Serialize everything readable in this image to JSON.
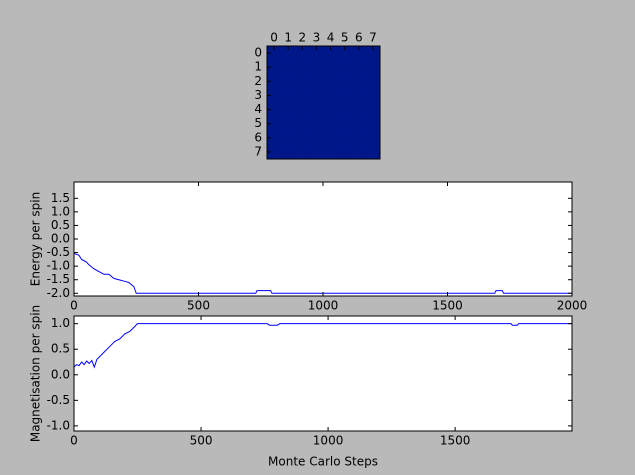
{
  "chart_data": [
    {
      "type": "heatmap",
      "xticks": [
        0,
        1,
        2,
        3,
        4,
        5,
        6,
        7
      ],
      "yticks": [
        0,
        1,
        2,
        3,
        4,
        5,
        6,
        7
      ],
      "values": [
        [
          1,
          1,
          1,
          1,
          1,
          1,
          1,
          1
        ],
        [
          1,
          1,
          1,
          1,
          1,
          1,
          1,
          1
        ],
        [
          1,
          1,
          1,
          1,
          1,
          1,
          1,
          1
        ],
        [
          1,
          1,
          1,
          1,
          1,
          1,
          1,
          1
        ],
        [
          1,
          1,
          1,
          1,
          1,
          1,
          1,
          1
        ],
        [
          1,
          1,
          1,
          1,
          1,
          1,
          1,
          1
        ],
        [
          1,
          1,
          1,
          1,
          1,
          1,
          1,
          1
        ],
        [
          1,
          1,
          1,
          1,
          1,
          1,
          1,
          1
        ]
      ],
      "color": "#00178a"
    },
    {
      "type": "line",
      "ylabel": "Energy per spin",
      "x": [
        0,
        5,
        20,
        30,
        50,
        60,
        80,
        100,
        120,
        140,
        160,
        180,
        200,
        220,
        240,
        250,
        730,
        735,
        790,
        795,
        1690,
        1695,
        1720,
        1725,
        2000
      ],
      "values": [
        -0.5,
        -0.55,
        -0.6,
        -0.75,
        -0.85,
        -0.95,
        -1.1,
        -1.2,
        -1.3,
        -1.3,
        -1.45,
        -1.5,
        -1.55,
        -1.6,
        -1.75,
        -2.0,
        -2.0,
        -1.9,
        -1.9,
        -2.0,
        -2.0,
        -1.9,
        -1.9,
        -2.0,
        -2.0
      ],
      "color": "#0000ff",
      "xlim": [
        0,
        2000
      ],
      "xticks": [
        0,
        500,
        1000,
        1500,
        2000
      ],
      "ylim": [
        -2.1,
        2.1
      ],
      "yticks": [
        {
          "value": -2,
          "label": "-2.0"
        },
        -1.5,
        {
          "value": -1,
          "label": "-1.0"
        },
        -0.5,
        {
          "value": 0,
          "label": "0.0"
        },
        0.5,
        {
          "value": 1,
          "label": "1.0"
        },
        1.5
      ]
    },
    {
      "type": "line",
      "ylabel": "Magnetisation per spin",
      "xlabel": "Monte Carlo Steps",
      "x": [
        0,
        10,
        20,
        30,
        40,
        50,
        60,
        70,
        80,
        90,
        100,
        120,
        140,
        160,
        180,
        200,
        220,
        240,
        250,
        760,
        770,
        800,
        810,
        1720,
        1725,
        1745,
        1750,
        1960
      ],
      "values": [
        0.15,
        0.2,
        0.18,
        0.25,
        0.2,
        0.27,
        0.22,
        0.28,
        0.15,
        0.3,
        0.35,
        0.45,
        0.55,
        0.65,
        0.7,
        0.8,
        0.85,
        0.95,
        1.0,
        1.0,
        0.97,
        0.97,
        1.0,
        1.0,
        0.97,
        0.97,
        1.0,
        1.0
      ],
      "color": "#0000ff",
      "xlim": [
        0,
        1960
      ],
      "xticks": [
        0,
        500,
        1000,
        1500
      ],
      "ylim": [
        -1.1,
        1.15
      ],
      "yticks": [
        {
          "value": -1,
          "label": "-1.0"
        },
        -0.5,
        {
          "value": 0,
          "label": "0.0"
        },
        0.5,
        {
          "value": 1,
          "label": "1.0"
        }
      ]
    }
  ]
}
